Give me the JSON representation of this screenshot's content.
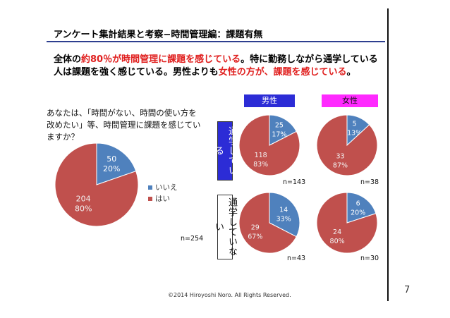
{
  "title": "アンケート集計結果と考察−時間管理編：課題有無",
  "headline": {
    "p1": "全体の",
    "p2": "約80％が時間管理に課題を感じている",
    "p3": "。特に勤務しながら通学してい",
    "p4": "る人は課題を強く感じている。男性よりも",
    "p5": "女性の方が、課題を感じている",
    "p6": "。"
  },
  "question": "あなたは、「時間がない、時間の使い方を改めたい」等、時間管理に課題を感じていますか？",
  "headers": {
    "male": "男性",
    "female": "女性"
  },
  "row_labels": {
    "working": "通学している",
    "not_working": "通学していない"
  },
  "legend": [
    {
      "label": "いいえ",
      "color": "#4f81bd"
    },
    {
      "label": "はい",
      "color": "#c0504d"
    }
  ],
  "colors": {
    "no": "#4f81bd",
    "yes": "#c0504d",
    "male_header": "#2c2cd6",
    "female_header": "#ff2aff"
  },
  "footer": "©2014  Hiroyoshi Noro. All Rights Reserved.",
  "page_number": "7",
  "chart_data": [
    {
      "type": "pie",
      "name": "overall",
      "categories": [
        "いいえ",
        "はい"
      ],
      "values": [
        50,
        204
      ],
      "percent_labels": [
        "20%",
        "80%"
      ],
      "n_label": "n=254"
    },
    {
      "type": "pie",
      "name": "male-working",
      "categories": [
        "いいえ",
        "はい"
      ],
      "values": [
        25,
        118
      ],
      "percent_labels": [
        "17%",
        "83%"
      ],
      "n_label": "n=143"
    },
    {
      "type": "pie",
      "name": "female-working",
      "categories": [
        "いいえ",
        "はい"
      ],
      "values": [
        5,
        33
      ],
      "percent_labels": [
        "13%",
        "87%"
      ],
      "n_label": "n=38"
    },
    {
      "type": "pie",
      "name": "male-not-working",
      "categories": [
        "いいえ",
        "はい"
      ],
      "values": [
        14,
        29
      ],
      "percent_labels": [
        "33%",
        "67%"
      ],
      "n_label": "n=43"
    },
    {
      "type": "pie",
      "name": "female-not-working",
      "categories": [
        "いいえ",
        "はい"
      ],
      "values": [
        6,
        24
      ],
      "percent_labels": [
        "20%",
        "80%"
      ],
      "n_label": "n=30"
    }
  ]
}
